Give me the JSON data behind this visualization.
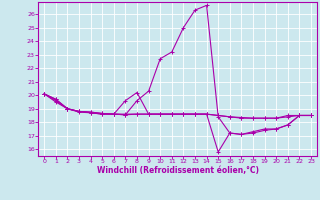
{
  "xlabel": "Windchill (Refroidissement éolien,°C)",
  "background_color": "#cce8ee",
  "grid_color": "#ffffff",
  "line_color": "#aa00aa",
  "xlim": [
    -0.5,
    23.5
  ],
  "ylim": [
    15.5,
    26.9
  ],
  "yticks": [
    16,
    17,
    18,
    19,
    20,
    21,
    22,
    23,
    24,
    25,
    26
  ],
  "xticks": [
    0,
    1,
    2,
    3,
    4,
    5,
    6,
    7,
    8,
    9,
    10,
    11,
    12,
    13,
    14,
    15,
    16,
    17,
    18,
    19,
    20,
    21,
    22,
    23
  ],
  "series": [
    [
      20.1,
      19.7,
      19.0,
      18.8,
      18.7,
      18.6,
      18.6,
      18.6,
      18.6,
      18.6,
      18.6,
      18.6,
      18.6,
      18.6,
      18.6,
      18.5,
      18.4,
      18.3,
      18.3,
      18.3,
      18.3,
      18.5,
      18.5,
      18.5
    ],
    [
      20.1,
      19.5,
      19.0,
      18.8,
      18.75,
      18.65,
      18.6,
      18.55,
      19.6,
      20.3,
      22.7,
      23.2,
      25.0,
      26.3,
      26.65,
      18.4,
      17.2,
      17.1,
      17.2,
      17.4,
      17.5,
      17.8,
      18.5,
      18.5
    ],
    [
      20.1,
      19.7,
      19.0,
      18.75,
      18.7,
      18.6,
      18.6,
      18.55,
      18.6,
      18.6,
      18.6,
      18.6,
      18.6,
      18.6,
      18.6,
      15.8,
      17.2,
      17.1,
      17.3,
      17.5,
      17.5,
      17.8,
      18.5,
      18.5
    ],
    [
      20.1,
      19.6,
      19.0,
      18.8,
      18.75,
      18.65,
      18.6,
      19.6,
      20.2,
      18.6,
      18.6,
      18.6,
      18.6,
      18.6,
      18.6,
      18.5,
      18.4,
      18.35,
      18.3,
      18.3,
      18.3,
      18.4,
      18.5,
      18.5
    ]
  ]
}
